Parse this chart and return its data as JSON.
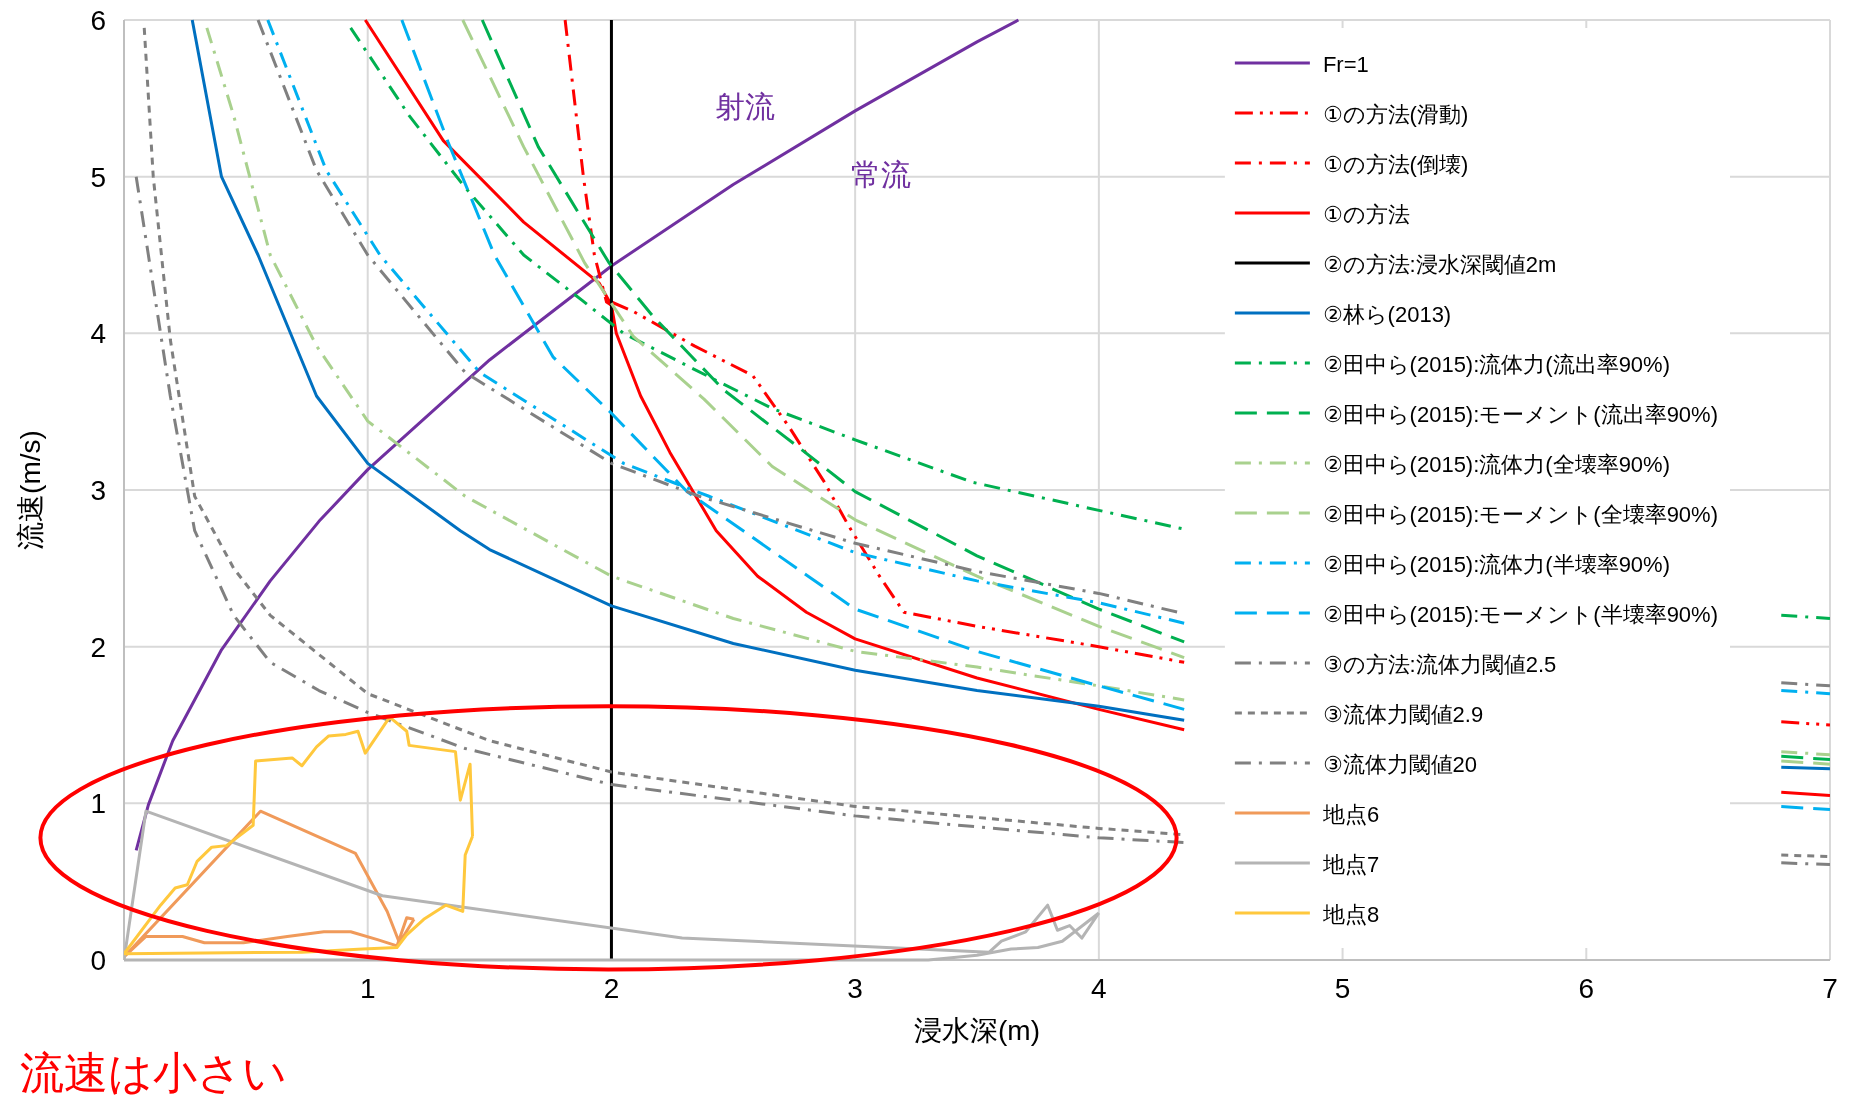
{
  "chart_data": {
    "type": "line",
    "xlabel": "浸水深(m)",
    "ylabel": "流速(m/s)",
    "xlim": [
      0,
      7
    ],
    "ylim": [
      0,
      6
    ],
    "xticks": [
      1,
      2,
      3,
      4,
      5,
      6,
      7
    ],
    "yticks": [
      0,
      1,
      2,
      3,
      4,
      5,
      6
    ],
    "grid": true,
    "legend": "right",
    "marker": "none",
    "annotations": [
      "射流",
      "常流",
      "流速は小さい"
    ],
    "series": [
      {
        "name": "Fr=1",
        "color": "#7030a0",
        "line_style": "solid",
        "x": [
          0.05,
          0.1,
          0.2,
          0.4,
          0.6,
          0.8,
          1.0,
          1.5,
          2.0,
          2.5,
          3.0,
          3.5,
          3.67
        ],
        "values": [
          0.7,
          0.99,
          1.4,
          1.98,
          2.42,
          2.8,
          3.13,
          3.83,
          4.43,
          4.95,
          5.42,
          5.86,
          6.0
        ]
      },
      {
        "name": "①の方法(滑動)",
        "color": "#ff0000",
        "line_style": "dashdotdot",
        "x": [
          2.0,
          2.09,
          2.34,
          2.58,
          2.73,
          2.87,
          2.97,
          3.1,
          3.2,
          3.5,
          4.0,
          4.35,
          null,
          6.8,
          7.0
        ],
        "values": [
          4.2,
          4.14,
          3.92,
          3.73,
          3.4,
          3.06,
          2.78,
          2.45,
          2.22,
          2.13,
          2.0,
          1.9,
          null,
          1.52,
          1.5
        ]
      },
      {
        "name": "①の方法(倒壊)",
        "color": "#ff0000",
        "line_style": "dashdot",
        "x": [
          1.81,
          1.885,
          1.93,
          1.98,
          2.0
        ],
        "values": [
          6,
          5,
          4.5,
          4.2,
          4.18
        ]
      },
      {
        "name": "①の方法",
        "color": "#ff0000",
        "line_style": "solid",
        "x": [
          0.99,
          1.31,
          1.64,
          1.95,
          2.0,
          2.02,
          2.12,
          2.24,
          2.43,
          2.6,
          2.8,
          3.0,
          3.5,
          4.0,
          4.35,
          null,
          6.8,
          7.0
        ],
        "values": [
          6,
          5.23,
          4.71,
          4.32,
          4.18,
          4.0,
          3.6,
          3.24,
          2.74,
          2.45,
          2.22,
          2.05,
          1.8,
          1.6,
          1.47,
          null,
          1.07,
          1.05
        ]
      },
      {
        "name": "②の方法:浸水深閾値2m",
        "color": "#000000",
        "line_style": "solid",
        "x": [
          2,
          2
        ],
        "values": [
          0,
          6
        ]
      },
      {
        "name": "②林ら(2013)",
        "color": "#0070c0",
        "line_style": "solid",
        "x": [
          0.28,
          0.4,
          0.55,
          0.79,
          1.0,
          1.38,
          1.5,
          2.0,
          2.5,
          3.0,
          3.5,
          4.0,
          4.35,
          null,
          6.8,
          7.0
        ],
        "values": [
          6,
          5,
          4.5,
          3.6,
          3.17,
          2.74,
          2.62,
          2.26,
          2.02,
          1.85,
          1.72,
          1.62,
          1.53,
          null,
          1.23,
          1.22
        ]
      },
      {
        "name": "②田中ら(2015):流体力(流出率90%)",
        "color": "#00b050",
        "line_style": "dashdot",
        "x": [
          0.93,
          1.17,
          1.4,
          1.64,
          1.88,
          2.05,
          2.34,
          2.66,
          3.0,
          3.48,
          4.0,
          4.35,
          null,
          6.8,
          7.0
        ],
        "values": [
          5.95,
          5.39,
          4.93,
          4.5,
          4.21,
          4.0,
          3.77,
          3.52,
          3.32,
          3.05,
          2.87,
          2.75,
          null,
          2.2,
          2.18
        ]
      },
      {
        "name": "②田中ら(2015):モーメント(流出率90%)",
        "color": "#00b050",
        "line_style": "dashed",
        "x": [
          1.47,
          1.7,
          1.99,
          2.17,
          2.46,
          2.77,
          3.0,
          3.5,
          4.0,
          4.35,
          null,
          6.8,
          7.0
        ],
        "values": [
          6,
          5.19,
          4.45,
          4.11,
          3.64,
          3.27,
          2.99,
          2.58,
          2.24,
          2.03,
          null,
          1.3,
          1.28
        ]
      },
      {
        "name": "②田中ら(2015):流体力(全壊率90%)",
        "color": "#a9d18e",
        "line_style": "dashdot",
        "x": [
          0.34,
          0.45,
          0.6,
          0.79,
          1.0,
          1.4,
          2.0,
          2.5,
          3.0,
          3.5,
          4.0,
          4.35,
          null,
          6.8,
          7.0
        ],
        "values": [
          5.95,
          5.39,
          4.5,
          3.92,
          3.44,
          2.96,
          2.45,
          2.18,
          1.97,
          1.87,
          1.75,
          1.66,
          null,
          1.33,
          1.31
        ]
      },
      {
        "name": "②田中ら(2015):モーメント(全壊率90%)",
        "color": "#a9d18e",
        "line_style": "dashed",
        "x": [
          1.39,
          1.64,
          1.89,
          2.09,
          2.38,
          2.66,
          3.0,
          3.5,
          4.0,
          4.35,
          null,
          6.8,
          7.0
        ],
        "values": [
          6,
          5.19,
          4.45,
          3.98,
          3.58,
          3.15,
          2.81,
          2.45,
          2.13,
          1.93,
          null,
          1.27,
          1.25
        ]
      },
      {
        "name": "②田中ら(2015):流体力(半壊率90%)",
        "color": "#00b0f0",
        "line_style": "dashdot",
        "x": [
          0.59,
          0.83,
          1.05,
          1.46,
          2.05,
          2.4,
          3.0,
          3.5,
          4.0,
          4.35,
          null,
          6.8,
          7.0
        ],
        "values": [
          6,
          5.04,
          4.5,
          3.75,
          3.17,
          2.96,
          2.6,
          2.42,
          2.28,
          2.15,
          null,
          1.72,
          1.7
        ]
      },
      {
        "name": "②田中ら(2015):モーメント(半壊率90%)",
        "color": "#00b0f0",
        "line_style": "dashed",
        "x": [
          1.14,
          1.33,
          1.52,
          1.76,
          2.0,
          2.31,
          3.0,
          3.5,
          4.0,
          4.35,
          null,
          6.8,
          7.0
        ],
        "values": [
          6,
          5.22,
          4.5,
          3.85,
          3.49,
          2.99,
          2.24,
          1.97,
          1.75,
          1.6,
          null,
          0.98,
          0.96
        ]
      },
      {
        "name": "③の方法:流体力閾値2.5",
        "color": "#808080",
        "line_style": "dashdot",
        "x": [
          0.05,
          0.12,
          0.19,
          0.29,
          0.45,
          0.6,
          0.8,
          1.0,
          1.4,
          2.0,
          3.0,
          4.0,
          4.35,
          null,
          6.8,
          7.0
        ],
        "values": [
          5.0,
          4.3,
          3.6,
          2.74,
          2.2,
          1.9,
          1.72,
          1.58,
          1.35,
          1.12,
          0.92,
          0.78,
          0.75,
          null,
          0.62,
          0.61
        ]
      },
      {
        "name": "③流体力閾値2.9",
        "color": "#808080",
        "line_style": "dotted",
        "x": [
          0.083,
          0.12,
          0.19,
          0.29,
          0.45,
          0.6,
          1.0,
          1.5,
          2.0,
          3.0,
          4.0,
          4.35,
          null,
          6.8,
          7.0
        ],
        "values": [
          5.95,
          5.0,
          3.96,
          2.96,
          2.5,
          2.2,
          1.7,
          1.4,
          1.2,
          0.98,
          0.84,
          0.8,
          null,
          0.67,
          0.66
        ]
      },
      {
        "name": "③流体力閾値20",
        "color": "#808080",
        "line_style": "dashdot",
        "x": [
          0.55,
          0.79,
          1.0,
          1.4,
          2.0,
          2.36,
          3.0,
          3.5,
          4.0,
          4.35,
          null,
          6.8,
          7.0
        ],
        "values": [
          6,
          5.04,
          4.5,
          3.75,
          3.17,
          2.96,
          2.66,
          2.48,
          2.34,
          2.21,
          null,
          1.77,
          1.75
        ]
      },
      {
        "name": "地点6",
        "color": "#f09a5a",
        "line_style": "solid",
        "x": [
          0,
          0.09,
          0.24,
          0.33,
          0.49,
          0.67,
          0.82,
          0.93,
          1.04,
          1.12,
          1.16,
          1.19,
          null,
          1.19,
          1.13,
          1.08,
          0.95,
          0.56,
          0
        ],
        "values": [
          0.02,
          0.15,
          0.15,
          0.11,
          0.11,
          0.15,
          0.18,
          0.18,
          0.13,
          0.09,
          0.27,
          0.26,
          null,
          0.26,
          0.11,
          0.31,
          0.68,
          0.95,
          0.02
        ]
      },
      {
        "name": "地点7",
        "color": "#b4b4b4",
        "line_style": "solid",
        "x": [
          0,
          0.09,
          1.06,
          2.29,
          3.55,
          3.6,
          3.7,
          3.79,
          3.83,
          3.88,
          3.93,
          4.0,
          null,
          4.0,
          3.85,
          3.75,
          3.64,
          3.5,
          3.3,
          2.84,
          0
        ],
        "values": [
          0,
          0.95,
          0.41,
          0.14,
          0.05,
          0.12,
          0.18,
          0.35,
          0.19,
          0.22,
          0.14,
          0.3,
          null,
          0.3,
          0.12,
          0.08,
          0.07,
          0.03,
          0,
          0,
          0
        ]
      },
      {
        "name": "地点8",
        "color": "#ffc83d",
        "line_style": "solid",
        "x": [
          0,
          0.15,
          0.21,
          0.26,
          0.3,
          0.36,
          0.42,
          0.53,
          0.54,
          0.69,
          0.73,
          0.79,
          0.84,
          0.91,
          0.96,
          0.99,
          1.09,
          1.16,
          1.17,
          1.36,
          1.38,
          1.42,
          1.43,
          null,
          1.43,
          1.4,
          1.39,
          1.32,
          1.27,
          1.23,
          1.16,
          1.12,
          0.98,
          0.73,
          0
        ],
        "values": [
          0.04,
          0.35,
          0.46,
          0.48,
          0.63,
          0.72,
          0.73,
          0.86,
          1.27,
          1.29,
          1.24,
          1.36,
          1.43,
          1.44,
          1.46,
          1.32,
          1.55,
          1.46,
          1.37,
          1.33,
          1.02,
          1.25,
          0.79,
          null,
          0.79,
          0.67,
          0.31,
          0.35,
          0.3,
          0.26,
          0.16,
          0.08,
          0.07,
          0.05,
          0.04
        ]
      }
    ]
  }
}
